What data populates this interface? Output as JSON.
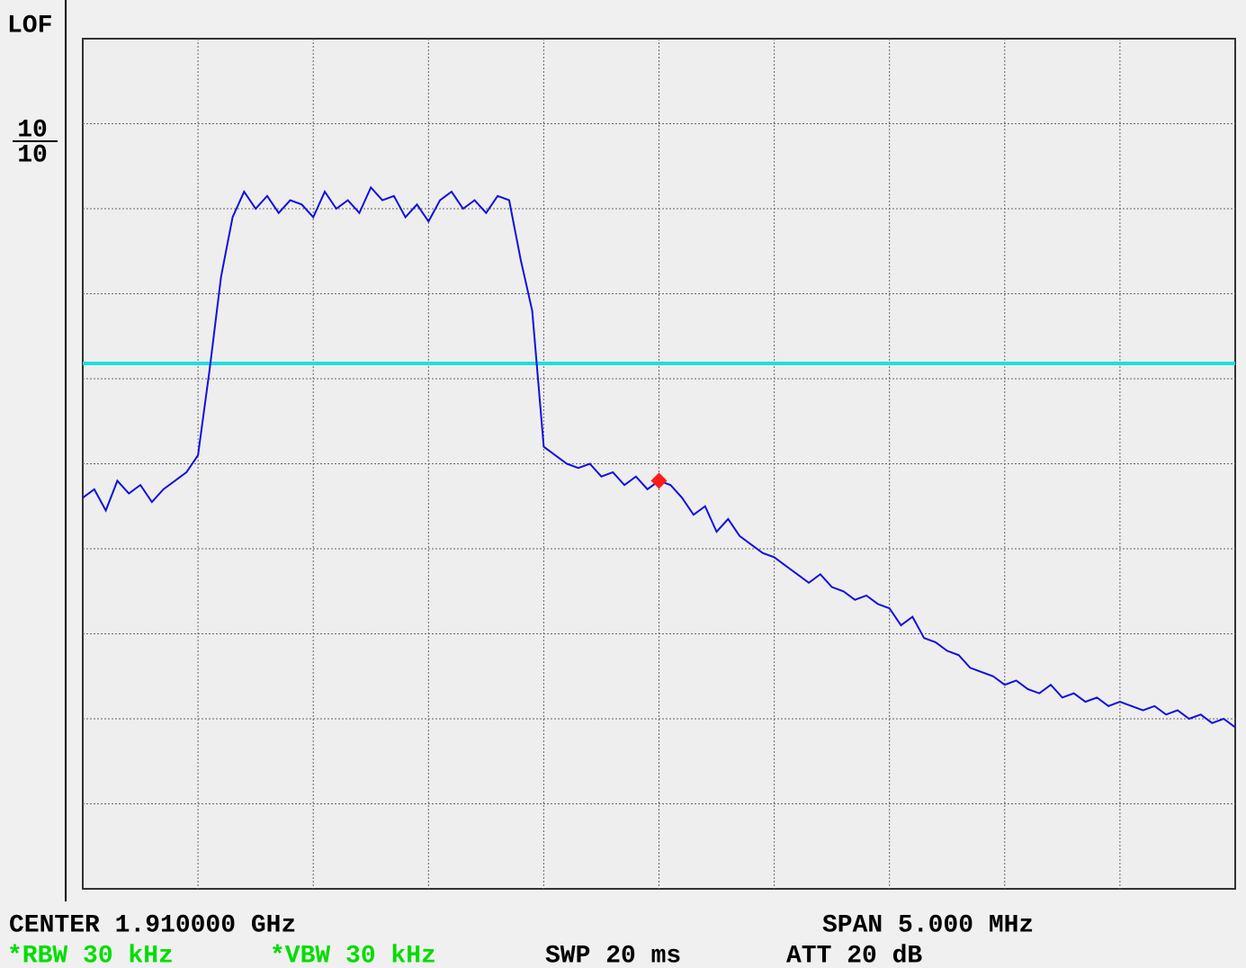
{
  "chart_data": {
    "type": "line",
    "corner_label": "LOF",
    "scale_labels": [
      "10",
      "10"
    ],
    "center": "CENTER 1.910000 GHz",
    "span": "SPAN 5.000 MHz",
    "rbw": "*RBW 30 kHz",
    "vbw": "*VBW 30 kHz",
    "sweep": "SWP 20 ms",
    "attenuation": "ATT 20 dB",
    "xlim": [
      1907.5,
      1912.5
    ],
    "ylim": [
      0,
      10
    ],
    "xticks": [
      1908,
      1908.5,
      1909,
      1909.5,
      1910,
      1910.5,
      1911,
      1911.5,
      1912
    ],
    "yticks": [
      1,
      2,
      3,
      4,
      5,
      6,
      7,
      8,
      9
    ],
    "grid": true,
    "threshold": 6.18,
    "threshold_color": "#22dde0",
    "marker": {
      "x": 1910,
      "y": 4.8,
      "color": "#ff1a1a"
    },
    "x": [
      1907.5,
      1907.55,
      1907.6,
      1907.65,
      1907.7,
      1907.75,
      1907.8,
      1907.85,
      1907.9,
      1907.95,
      1908,
      1908.05,
      1908.1,
      1908.15,
      1908.2,
      1908.25,
      1908.3,
      1908.35,
      1908.4,
      1908.45,
      1908.5,
      1908.55,
      1908.6,
      1908.65,
      1908.7,
      1908.75,
      1908.8,
      1908.85,
      1908.9,
      1908.95,
      1909,
      1909.05,
      1909.1,
      1909.15,
      1909.2,
      1909.25,
      1909.3,
      1909.35,
      1909.4,
      1909.45,
      1909.5,
      1909.55,
      1909.6,
      1909.65,
      1909.7,
      1909.75,
      1909.8,
      1909.85,
      1909.9,
      1909.95,
      1910,
      1910.05,
      1910.1,
      1910.15,
      1910.2,
      1910.25,
      1910.3,
      1910.35,
      1910.4,
      1910.45,
      1910.5,
      1910.55,
      1910.6,
      1910.65,
      1910.7,
      1910.75,
      1910.8,
      1910.85,
      1910.9,
      1910.95,
      1911,
      1911.05,
      1911.1,
      1911.15,
      1911.2,
      1911.25,
      1911.3,
      1911.35,
      1911.4,
      1911.45,
      1911.5,
      1911.55,
      1911.6,
      1911.65,
      1911.7,
      1911.75,
      1911.8,
      1911.85,
      1911.9,
      1911.95,
      1912,
      1912.05,
      1912.1,
      1912.15,
      1912.2,
      1912.25,
      1912.3,
      1912.35,
      1912.4,
      1912.45,
      1912.5
    ],
    "series": [
      {
        "color": "#1010e0",
        "values": [
          4.6,
          4.7,
          4.45,
          4.8,
          4.65,
          4.75,
          4.55,
          4.7,
          4.8,
          4.9,
          5.1,
          6.1,
          7.2,
          7.9,
          8.2,
          8.0,
          8.15,
          7.95,
          8.1,
          8.05,
          7.9,
          8.2,
          8.0,
          8.1,
          7.95,
          8.25,
          8.1,
          8.15,
          7.9,
          8.05,
          7.85,
          8.1,
          8.2,
          8.0,
          8.1,
          7.95,
          8.15,
          8.1,
          7.4,
          6.8,
          5.2,
          5.1,
          5.0,
          4.95,
          5.0,
          4.85,
          4.9,
          4.75,
          4.85,
          4.7,
          4.8,
          4.75,
          4.6,
          4.4,
          4.5,
          4.2,
          4.35,
          4.15,
          4.05,
          3.95,
          3.9,
          3.8,
          3.7,
          3.6,
          3.7,
          3.55,
          3.5,
          3.4,
          3.45,
          3.35,
          3.3,
          3.1,
          3.2,
          2.95,
          2.9,
          2.8,
          2.75,
          2.6,
          2.55,
          2.5,
          2.4,
          2.45,
          2.35,
          2.3,
          2.4,
          2.25,
          2.3,
          2.2,
          2.25,
          2.15,
          2.2,
          2.15,
          2.1,
          2.15,
          2.05,
          2.1,
          2.0,
          2.05,
          1.95,
          2.0,
          1.9
        ]
      }
    ]
  }
}
